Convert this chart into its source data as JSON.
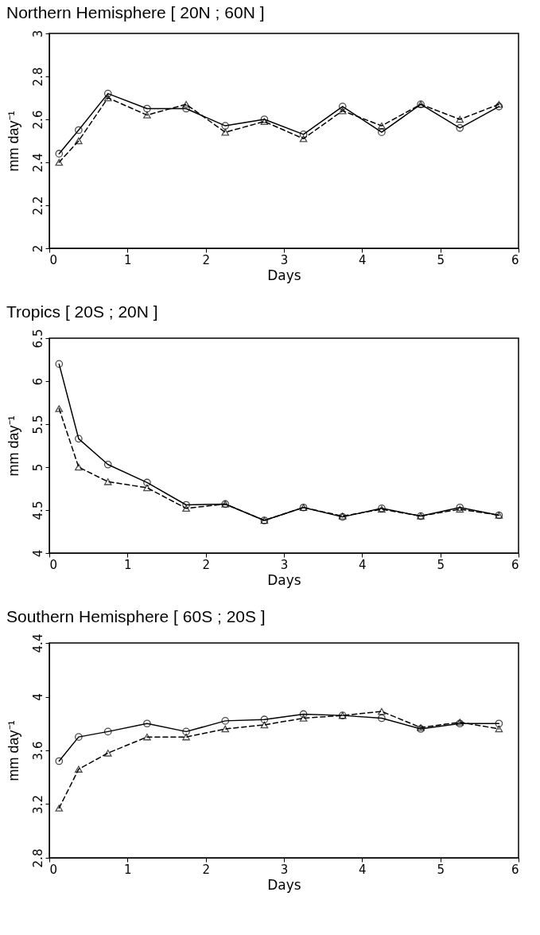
{
  "chart_data": [
    {
      "type": "line",
      "title": "Northern Hemisphere [ 20N ; 60N ]",
      "xlabel": "Days",
      "ylabel": "mm day⁻¹",
      "x": [
        0.125,
        0.375,
        0.75,
        1.25,
        1.75,
        2.25,
        2.75,
        3.25,
        3.75,
        4.25,
        4.75,
        5.25,
        5.75
      ],
      "xlim": [
        0,
        6
      ],
      "xticks": [
        0,
        1,
        2,
        3,
        4,
        5,
        6
      ],
      "ylim": [
        2,
        3
      ],
      "yticks": [
        2,
        2.2,
        2.4,
        2.6,
        2.8,
        3
      ],
      "grid": false,
      "series": [
        {
          "color": "#000000",
          "marker": "circle",
          "line_style": "solid",
          "values": [
            2.44,
            2.55,
            2.72,
            2.65,
            2.65,
            2.57,
            2.6,
            2.53,
            2.66,
            2.54,
            2.67,
            2.56,
            2.66
          ]
        },
        {
          "color": "#000000",
          "marker": "triangle",
          "line_style": "dashed",
          "values": [
            2.4,
            2.5,
            2.7,
            2.62,
            2.67,
            2.54,
            2.59,
            2.51,
            2.64,
            2.57,
            2.67,
            2.6,
            2.67
          ]
        }
      ]
    },
    {
      "type": "line",
      "title": "Tropics [ 20S ; 20N ]",
      "xlabel": "Days",
      "ylabel": "mm day⁻¹",
      "x": [
        0.125,
        0.375,
        0.75,
        1.25,
        1.75,
        2.25,
        2.75,
        3.25,
        3.75,
        4.25,
        4.75,
        5.25,
        5.75
      ],
      "xlim": [
        0,
        6
      ],
      "xticks": [
        0,
        1,
        2,
        3,
        4,
        5,
        6
      ],
      "ylim": [
        4,
        6.5
      ],
      "yticks": [
        4,
        4.5,
        5,
        5.5,
        6,
        6.5
      ],
      "grid": false,
      "series": [
        {
          "color": "#000000",
          "marker": "circle",
          "line_style": "solid",
          "values": [
            6.2,
            5.33,
            5.03,
            4.82,
            4.56,
            4.57,
            4.38,
            4.53,
            4.42,
            4.52,
            4.43,
            4.53,
            4.44
          ]
        },
        {
          "color": "#000000",
          "marker": "triangle",
          "line_style": "dashed",
          "values": [
            5.68,
            5.0,
            4.83,
            4.76,
            4.52,
            4.57,
            4.38,
            4.53,
            4.43,
            4.51,
            4.43,
            4.51,
            4.44
          ]
        }
      ]
    },
    {
      "type": "line",
      "title": "Southern Hemisphere [ 60S ; 20S ]",
      "xlabel": "Days",
      "ylabel": "mm day⁻¹",
      "x": [
        0.125,
        0.375,
        0.75,
        1.25,
        1.75,
        2.25,
        2.75,
        3.25,
        3.75,
        4.25,
        4.75,
        5.25,
        5.75
      ],
      "xlim": [
        0,
        6
      ],
      "xticks": [
        0,
        1,
        2,
        3,
        4,
        5,
        6
      ],
      "ylim": [
        2.8,
        4.4
      ],
      "yticks": [
        2.8,
        3.2,
        3.6,
        4,
        4.4
      ],
      "grid": false,
      "series": [
        {
          "color": "#000000",
          "marker": "circle",
          "line_style": "solid",
          "values": [
            3.52,
            3.7,
            3.74,
            3.8,
            3.74,
            3.82,
            3.83,
            3.87,
            3.86,
            3.84,
            3.76,
            3.8,
            3.8
          ]
        },
        {
          "color": "#000000",
          "marker": "triangle",
          "line_style": "dashed",
          "values": [
            3.17,
            3.46,
            3.58,
            3.7,
            3.7,
            3.76,
            3.79,
            3.84,
            3.86,
            3.89,
            3.77,
            3.81,
            3.76
          ]
        }
      ]
    }
  ]
}
